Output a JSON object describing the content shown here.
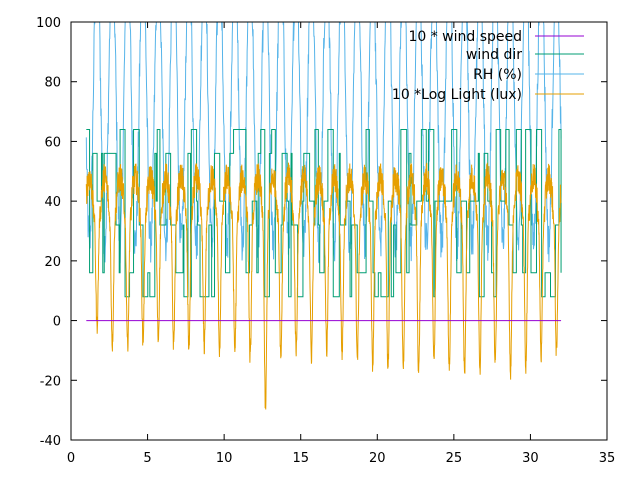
{
  "chart_data": {
    "type": "line",
    "title": "",
    "xlabel": "",
    "ylabel": "",
    "xlim": [
      0,
      35
    ],
    "ylim": [
      -40,
      100
    ],
    "x_ticks": [
      0,
      5,
      10,
      15,
      20,
      25,
      30,
      35
    ],
    "y_ticks": [
      -40,
      -20,
      0,
      20,
      40,
      60,
      80,
      100
    ],
    "legend_position": "top-right",
    "grid": false,
    "series": [
      {
        "name": "10 * wind speed",
        "color": "#9400d3",
        "style": "flat",
        "x_range": [
          1,
          32
        ],
        "level": 0
      },
      {
        "name": "wind dir",
        "color": "#009e73",
        "style": "stepped",
        "x_range": [
          1,
          32
        ],
        "levels": [
          8,
          16,
          32,
          40,
          56,
          64
        ],
        "end_value": 16
      },
      {
        "name": "RH (%)",
        "color": "#56b4e9",
        "style": "oscillating",
        "x_range": [
          1,
          32
        ],
        "range": [
          28,
          100
        ],
        "period": 1,
        "phase": 0.55
      },
      {
        "name": "10 *Log Light (lux)",
        "color": "#e69f00",
        "style": "oscillating",
        "x_range": [
          1,
          32
        ],
        "daily_high": 44,
        "daily_lows": [
          -2,
          -8,
          -8,
          -7,
          -6,
          -8,
          -9,
          -9,
          -10,
          -10,
          -13,
          -30,
          -12,
          -10,
          -12,
          -10,
          -11,
          -13,
          -15,
          -16,
          -15,
          -17,
          -14,
          -16,
          -18,
          -17,
          -15,
          -17,
          -15,
          -12,
          -11
        ],
        "period": 1,
        "phase": 0.05
      }
    ]
  }
}
